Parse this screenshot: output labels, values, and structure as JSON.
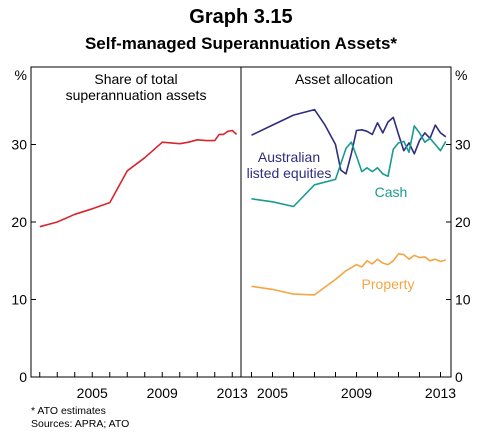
{
  "header": {
    "title": "Graph 3.15",
    "subtitle": "Self-managed Superannuation Assets*"
  },
  "footnotes": {
    "note": "*    ATO estimates",
    "sources": "Sources: APRA; ATO"
  },
  "chart_data": [
    {
      "type": "line",
      "panel": "left",
      "title_lines": [
        "Share of total",
        "superannuation assets"
      ],
      "ylabel": "%",
      "ylim": [
        0,
        40
      ],
      "yticks": [
        0,
        10,
        20,
        30
      ],
      "xlim": [
        2001.5,
        2013.5
      ],
      "xticks": [
        2005,
        2009,
        2013
      ],
      "grid": false,
      "series": [
        {
          "color": "#d7262f",
          "points": [
            [
              2002.0,
              19.4
            ],
            [
              2003.0,
              20.0
            ],
            [
              2004.0,
              21.0
            ],
            [
              2005.0,
              21.7
            ],
            [
              2006.0,
              22.5
            ],
            [
              2007.0,
              26.6
            ],
            [
              2008.0,
              28.3
            ],
            [
              2009.0,
              30.3
            ],
            [
              2010.0,
              30.1
            ],
            [
              2010.5,
              30.3
            ],
            [
              2011.0,
              30.6
            ],
            [
              2011.5,
              30.5
            ],
            [
              2012.0,
              30.5
            ],
            [
              2012.25,
              31.3
            ],
            [
              2012.5,
              31.3
            ],
            [
              2012.75,
              31.7
            ],
            [
              2013.0,
              31.8
            ],
            [
              2013.25,
              31.3
            ]
          ]
        }
      ]
    },
    {
      "type": "line",
      "panel": "right",
      "title_lines": [
        "Asset allocation"
      ],
      "ylabel": "%",
      "ylim": [
        0,
        40
      ],
      "yticks": [
        0,
        10,
        20,
        30
      ],
      "xlim": [
        2003.5,
        2013.5
      ],
      "xticks": [
        2005,
        2009,
        2013
      ],
      "grid": false,
      "series": [
        {
          "name_lines": [
            "Australian",
            "listed equities"
          ],
          "color": "#2e2d7f",
          "points": [
            [
              2004.0,
              31.2
            ],
            [
              2005.0,
              32.5
            ],
            [
              2006.0,
              33.8
            ],
            [
              2007.0,
              34.5
            ],
            [
              2007.5,
              32.5
            ],
            [
              2008.0,
              30.0
            ],
            [
              2008.25,
              26.7
            ],
            [
              2008.5,
              26.2
            ],
            [
              2008.75,
              28.8
            ],
            [
              2009.0,
              31.8
            ],
            [
              2009.25,
              31.9
            ],
            [
              2009.5,
              31.7
            ],
            [
              2009.75,
              31.3
            ],
            [
              2010.0,
              32.8
            ],
            [
              2010.25,
              31.5
            ],
            [
              2010.5,
              32.9
            ],
            [
              2010.75,
              33.5
            ],
            [
              2011.0,
              31.3
            ],
            [
              2011.25,
              29.2
            ],
            [
              2011.5,
              30.2
            ],
            [
              2011.75,
              28.8
            ],
            [
              2012.0,
              30.5
            ],
            [
              2012.25,
              31.5
            ],
            [
              2012.5,
              30.8
            ],
            [
              2012.75,
              32.5
            ],
            [
              2013.0,
              31.5
            ],
            [
              2013.25,
              31.0
            ]
          ]
        },
        {
          "name_lines": [
            "Cash"
          ],
          "color": "#1a9b91",
          "points": [
            [
              2004.0,
              23.0
            ],
            [
              2005.0,
              22.6
            ],
            [
              2006.0,
              22.0
            ],
            [
              2007.0,
              24.8
            ],
            [
              2008.0,
              25.5
            ],
            [
              2008.5,
              29.5
            ],
            [
              2008.75,
              30.3
            ],
            [
              2009.0,
              28.5
            ],
            [
              2009.25,
              26.5
            ],
            [
              2009.5,
              27.0
            ],
            [
              2009.75,
              26.5
            ],
            [
              2010.0,
              27.0
            ],
            [
              2010.25,
              26.2
            ],
            [
              2010.5,
              25.9
            ],
            [
              2010.75,
              29.4
            ],
            [
              2011.0,
              30.2
            ],
            [
              2011.25,
              30.4
            ],
            [
              2011.5,
              29.0
            ],
            [
              2011.75,
              32.4
            ],
            [
              2012.0,
              31.5
            ],
            [
              2012.25,
              30.3
            ],
            [
              2012.5,
              30.8
            ],
            [
              2012.75,
              30.0
            ],
            [
              2013.0,
              29.2
            ],
            [
              2013.25,
              30.4
            ]
          ]
        },
        {
          "name_lines": [
            "Property"
          ],
          "color": "#f4a545",
          "points": [
            [
              2004.0,
              11.7
            ],
            [
              2005.0,
              11.3
            ],
            [
              2006.0,
              10.7
            ],
            [
              2007.0,
              10.6
            ],
            [
              2008.0,
              12.6
            ],
            [
              2008.5,
              13.7
            ],
            [
              2009.0,
              14.5
            ],
            [
              2009.25,
              14.2
            ],
            [
              2009.5,
              15.0
            ],
            [
              2009.75,
              14.6
            ],
            [
              2010.0,
              15.2
            ],
            [
              2010.25,
              14.7
            ],
            [
              2010.5,
              14.5
            ],
            [
              2010.75,
              15.0
            ],
            [
              2011.0,
              15.9
            ],
            [
              2011.25,
              15.8
            ],
            [
              2011.5,
              15.2
            ],
            [
              2011.75,
              15.7
            ],
            [
              2012.0,
              15.4
            ],
            [
              2012.25,
              15.5
            ],
            [
              2012.5,
              15.0
            ],
            [
              2012.75,
              15.2
            ],
            [
              2013.0,
              14.9
            ],
            [
              2013.25,
              15.1
            ]
          ]
        }
      ]
    }
  ]
}
